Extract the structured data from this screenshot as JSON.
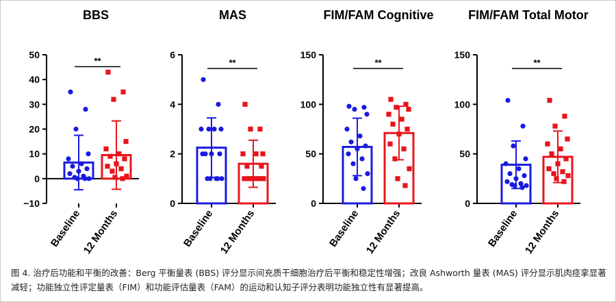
{
  "colors": {
    "baseline": "#1a1adf",
    "months12": "#e8141c",
    "axis": "#000000"
  },
  "caption": "图 4. 治疗后功能和平衡的改善：Berg 平衡量表 (BBS) 评分显示间充质干细胞治疗后平衡和稳定性增强；改良 Ashworth 量表 (MAS) 评分显示肌肉痉挛显著减轻；功能独立性评定量表（FIM）和功能评估量表（FAM）的运动和认知子评分表明功能独立性有显著提高。",
  "chart_data": [
    {
      "type": "bar",
      "title": "BBS",
      "categories": [
        "Baseline",
        "12 Months"
      ],
      "ylim": [
        -10,
        50
      ],
      "yticks": [
        -10,
        0,
        10,
        20,
        30,
        40,
        50
      ],
      "ytick_labels": [
        "−10",
        "0",
        "10",
        "20",
        "30",
        "40",
        "50"
      ],
      "zero_line": true,
      "significance": "**",
      "series": [
        {
          "mean": 6.5,
          "sd": 11.0,
          "points": [
            35,
            28,
            20,
            10,
            8,
            6,
            5,
            4,
            3,
            2,
            1,
            0.5,
            0,
            0,
            0
          ]
        },
        {
          "mean": 9.5,
          "sd": 13.8,
          "points": [
            43,
            35,
            32,
            15,
            12,
            10,
            9,
            8,
            6,
            5,
            4,
            3,
            1,
            0.5,
            0
          ]
        }
      ]
    },
    {
      "type": "bar",
      "title": "MAS",
      "categories": [
        "Baseline",
        "12 Months"
      ],
      "ylim": [
        0,
        6
      ],
      "yticks": [
        0,
        2,
        4,
        6
      ],
      "ytick_labels": [
        "0",
        "2",
        "4",
        "6"
      ],
      "zero_line": false,
      "significance": "**",
      "series": [
        {
          "mean": 2.25,
          "sd": 1.2,
          "points": [
            5,
            4,
            3,
            3,
            3,
            3,
            2,
            2,
            2,
            2,
            1,
            1,
            1,
            1,
            1
          ]
        },
        {
          "mean": 1.6,
          "sd": 0.95,
          "points": [
            4,
            3,
            3,
            2,
            2,
            2,
            1.5,
            1.5,
            1,
            1,
            1,
            1,
            1,
            1,
            1
          ]
        }
      ]
    },
    {
      "type": "bar",
      "title": "FIM/FAM Cognitive",
      "categories": [
        "Baseline",
        "12 Months"
      ],
      "ylim": [
        0,
        150
      ],
      "yticks": [
        0,
        50,
        100,
        150
      ],
      "ytick_labels": [
        "0",
        "50",
        "100",
        "150"
      ],
      "zero_line": false,
      "significance": "**",
      "series": [
        {
          "mean": 57,
          "sd": 29,
          "points": [
            98,
            97,
            95,
            90,
            75,
            68,
            62,
            58,
            55,
            50,
            45,
            40,
            30,
            25,
            15
          ]
        },
        {
          "mean": 71,
          "sd": 27,
          "points": [
            105,
            100,
            97,
            95,
            90,
            85,
            80,
            75,
            70,
            60,
            55,
            45,
            35,
            25,
            18
          ]
        }
      ]
    },
    {
      "type": "bar",
      "title": "FIM/FAM Total Motor",
      "categories": [
        "Baseline",
        "12 Months"
      ],
      "ylim": [
        0,
        150
      ],
      "yticks": [
        0,
        50,
        100,
        150
      ],
      "ytick_labels": [
        "0",
        "50",
        "100",
        "150"
      ],
      "zero_line": false,
      "significance": "**",
      "series": [
        {
          "mean": 39,
          "sd": 24,
          "points": [
            104,
            78,
            58,
            45,
            40,
            35,
            30,
            28,
            25,
            22,
            20,
            19,
            18,
            18,
            16
          ]
        },
        {
          "mean": 47,
          "sd": 26,
          "points": [
            104,
            88,
            78,
            65,
            60,
            55,
            50,
            45,
            40,
            35,
            32,
            30,
            28,
            25,
            22
          ]
        }
      ]
    }
  ]
}
